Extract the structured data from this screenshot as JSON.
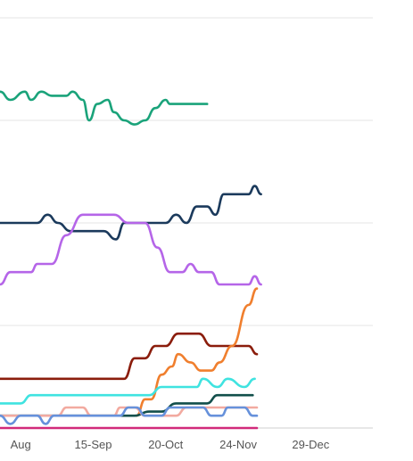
{
  "chart_data": {
    "type": "line",
    "title": "",
    "xlabel": "",
    "ylabel": "",
    "x_tick_labels": [
      "Aug",
      "15-Sep",
      "20-Oct",
      "24-Nov",
      "29-Dec"
    ],
    "x_tick_days": [
      0,
      35,
      70,
      105,
      140
    ],
    "x_domain_days": [
      -10,
      170
    ],
    "ylim": [
      0,
      100
    ],
    "y_gridlines": [
      0,
      25,
      50,
      75,
      100
    ],
    "grid": true,
    "legend": "none",
    "series": [
      {
        "color": "#1aa37a",
        "points": [
          [
            -10,
            82
          ],
          [
            -5,
            80
          ],
          [
            2,
            82
          ],
          [
            5,
            80
          ],
          [
            10,
            82
          ],
          [
            15,
            81
          ],
          [
            22,
            81
          ],
          [
            25,
            82
          ],
          [
            30,
            80
          ],
          [
            33,
            75
          ],
          [
            37,
            79
          ],
          [
            42,
            80
          ],
          [
            45,
            77
          ],
          [
            50,
            75
          ],
          [
            55,
            74
          ],
          [
            60,
            75
          ],
          [
            65,
            78
          ],
          [
            70,
            80
          ],
          [
            72,
            79
          ],
          [
            80,
            79
          ],
          [
            90,
            79
          ]
        ]
      },
      {
        "color": "#1b3a5c",
        "points": [
          [
            -10,
            50
          ],
          [
            8,
            50
          ],
          [
            13,
            52
          ],
          [
            18,
            50
          ],
          [
            24,
            48
          ],
          [
            40,
            48
          ],
          [
            46,
            46
          ],
          [
            50,
            50
          ],
          [
            70,
            50
          ],
          [
            75,
            52
          ],
          [
            80,
            50
          ],
          [
            85,
            54
          ],
          [
            90,
            54
          ],
          [
            94,
            52
          ],
          [
            98,
            57
          ],
          [
            110,
            57
          ],
          [
            113,
            59
          ],
          [
            116,
            57
          ]
        ]
      },
      {
        "color": "#b565e8",
        "points": [
          [
            -10,
            35
          ],
          [
            -5,
            38
          ],
          [
            5,
            38
          ],
          [
            8,
            40
          ],
          [
            15,
            40
          ],
          [
            22,
            47
          ],
          [
            30,
            52
          ],
          [
            45,
            52
          ],
          [
            52,
            50
          ],
          [
            60,
            50
          ],
          [
            66,
            44
          ],
          [
            72,
            38
          ],
          [
            78,
            38
          ],
          [
            82,
            40
          ],
          [
            86,
            38
          ],
          [
            92,
            38
          ],
          [
            96,
            35
          ],
          [
            110,
            35
          ],
          [
            113,
            37
          ],
          [
            116,
            35
          ]
        ]
      },
      {
        "color": "#8b1d0c",
        "points": [
          [
            -10,
            12
          ],
          [
            50,
            12
          ],
          [
            55,
            17
          ],
          [
            60,
            17
          ],
          [
            65,
            20
          ],
          [
            70,
            20
          ],
          [
            76,
            23
          ],
          [
            86,
            23
          ],
          [
            92,
            20
          ],
          [
            110,
            20
          ],
          [
            114,
            18
          ]
        ]
      },
      {
        "color": "#f07f2e",
        "points": [
          [
            56,
            3
          ],
          [
            60,
            7
          ],
          [
            63,
            7
          ],
          [
            68,
            13
          ],
          [
            73,
            15
          ],
          [
            76,
            18
          ],
          [
            82,
            16
          ],
          [
            87,
            14
          ],
          [
            92,
            14
          ],
          [
            96,
            16
          ],
          [
            102,
            20
          ],
          [
            110,
            30
          ],
          [
            114,
            34
          ]
        ]
      },
      {
        "color": "#3fe3e0",
        "points": [
          [
            -10,
            6
          ],
          [
            0,
            6
          ],
          [
            5,
            8
          ],
          [
            55,
            8
          ],
          [
            62,
            8
          ],
          [
            68,
            10
          ],
          [
            85,
            10
          ],
          [
            88,
            12
          ],
          [
            95,
            10
          ],
          [
            100,
            12
          ],
          [
            108,
            10
          ],
          [
            113,
            12
          ]
        ]
      },
      {
        "color": "#124f4b",
        "points": [
          [
            -10,
            3
          ],
          [
            0,
            3
          ],
          [
            55,
            3
          ],
          [
            62,
            4
          ],
          [
            68,
            4
          ],
          [
            75,
            6
          ],
          [
            90,
            6
          ],
          [
            95,
            8
          ],
          [
            100,
            8
          ],
          [
            106,
            8
          ],
          [
            108,
            8
          ],
          [
            112,
            8
          ]
        ]
      },
      {
        "color": "#f2aaa0",
        "points": [
          [
            -10,
            3
          ],
          [
            8,
            3
          ],
          [
            18,
            3
          ],
          [
            22,
            5
          ],
          [
            30,
            5
          ],
          [
            34,
            3
          ],
          [
            45,
            3
          ],
          [
            48,
            5
          ],
          [
            55,
            5
          ],
          [
            60,
            3
          ],
          [
            75,
            3
          ],
          [
            80,
            5
          ],
          [
            100,
            5
          ],
          [
            114,
            5
          ]
        ]
      },
      {
        "color": "#6691db",
        "points": [
          [
            -10,
            3
          ],
          [
            -5,
            1
          ],
          [
            0,
            3
          ],
          [
            8,
            3
          ],
          [
            12,
            1
          ],
          [
            16,
            3
          ],
          [
            48,
            3
          ],
          [
            52,
            5
          ],
          [
            56,
            5
          ],
          [
            60,
            3
          ],
          [
            68,
            3
          ],
          [
            72,
            5
          ],
          [
            88,
            5
          ],
          [
            92,
            3
          ],
          [
            97,
            3
          ],
          [
            100,
            5
          ],
          [
            108,
            5
          ],
          [
            112,
            3
          ],
          [
            114,
            3
          ]
        ]
      },
      {
        "color": "#d12a7a",
        "points": [
          [
            -10,
            0
          ],
          [
            114,
            0
          ]
        ]
      }
    ]
  }
}
